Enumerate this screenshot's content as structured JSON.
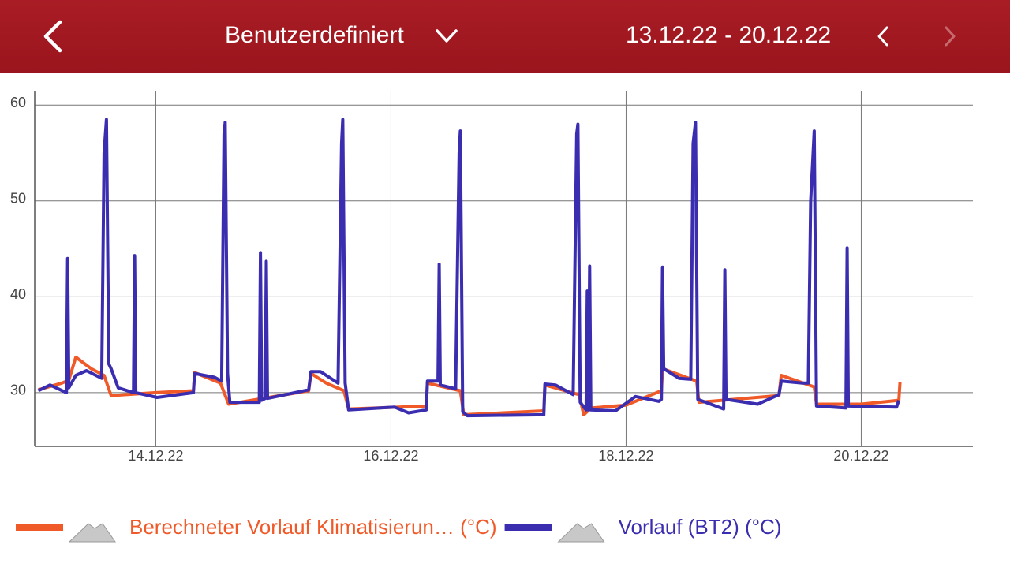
{
  "header": {
    "title": "Benutzerdefiniert",
    "date_range": "13.12.22 - 20.12.22"
  },
  "chart_data": {
    "type": "line",
    "xlim": [
      12.97,
      20.95
    ],
    "xticks": [
      {
        "value": 14,
        "label": "14.12.22"
      },
      {
        "value": 16,
        "label": "16.12.22"
      },
      {
        "value": 18,
        "label": "18.12.22"
      },
      {
        "value": 20,
        "label": "20.12.22"
      }
    ],
    "ylim": [
      24.4,
      61.5
    ],
    "yticks": [
      30,
      40,
      50,
      60
    ],
    "grid": true,
    "series": [
      {
        "name": "Berechneter Vorlauf Klimatisierun…  (°C)",
        "color": "#f05a28",
        "x": [
          13.0,
          13.2,
          13.26,
          13.32,
          13.45,
          13.56,
          13.62,
          14.0,
          14.32,
          14.33,
          14.55,
          14.62,
          15.3,
          15.32,
          15.45,
          15.6,
          15.64,
          16.3,
          16.31,
          16.59,
          16.62,
          17.3,
          17.31,
          17.6,
          17.64,
          17.7,
          18.0,
          18.3,
          18.31,
          18.6,
          18.62,
          19.3,
          19.32,
          19.6,
          19.62,
          20.0,
          20.32,
          20.33
        ],
        "values": [
          30.3,
          31,
          31.3,
          33.7,
          32.5,
          31.8,
          29.7,
          30.0,
          30.2,
          32.1,
          31,
          28.8,
          30.2,
          32,
          31,
          30.2,
          28.3,
          28.6,
          31,
          30.2,
          27.7,
          28.1,
          30.8,
          29.8,
          27.7,
          28.4,
          28.7,
          30.2,
          32.5,
          31.2,
          29,
          29.7,
          31.8,
          30.6,
          28.8,
          28.8,
          29.2,
          31.1
        ]
      },
      {
        "name": "Vorlauf (BT2) (°C)",
        "color": "#3a2db0",
        "x": [
          13.0,
          13.1,
          13.24,
          13.25,
          13.26,
          13.32,
          13.41,
          13.54,
          13.56,
          13.58,
          13.6,
          13.62,
          13.68,
          13.81,
          13.82,
          13.83,
          14.01,
          14.32,
          14.33,
          14.5,
          14.56,
          14.58,
          14.59,
          14.61,
          14.63,
          14.88,
          14.89,
          14.9,
          14.93,
          14.94,
          14.95,
          15.3,
          15.32,
          15.4,
          15.55,
          15.58,
          15.59,
          15.61,
          15.64,
          15.9,
          16.03,
          16.15,
          16.3,
          16.31,
          16.4,
          16.41,
          16.42,
          16.55,
          16.58,
          16.59,
          16.61,
          16.65,
          17.3,
          17.31,
          17.4,
          17.55,
          17.58,
          17.59,
          17.61,
          17.66,
          17.67,
          17.68,
          17.69,
          17.7,
          17.91,
          18.08,
          18.28,
          18.3,
          18.31,
          18.32,
          18.45,
          18.55,
          18.57,
          18.59,
          18.61,
          18.72,
          18.83,
          18.84,
          18.85,
          19.12,
          19.3,
          19.32,
          19.5,
          19.55,
          19.57,
          19.6,
          19.62,
          19.87,
          19.88,
          19.89,
          20.3,
          20.32
        ],
        "values": [
          30.2,
          30.8,
          30.0,
          44,
          30.5,
          31.8,
          32.3,
          31.5,
          55,
          58.5,
          33,
          32.5,
          30.5,
          30,
          44.3,
          30,
          29.5,
          30.0,
          32,
          31.6,
          31.2,
          57,
          58.2,
          32,
          29,
          29,
          44.6,
          29.2,
          29.4,
          43.7,
          29.4,
          30.3,
          32.2,
          32.2,
          31,
          56,
          58.5,
          31,
          28.2,
          28.4,
          28.5,
          27.9,
          28.2,
          31.2,
          31.2,
          43.4,
          30.8,
          30.4,
          55,
          57.3,
          28,
          27.6,
          27.7,
          30.9,
          30.8,
          29.8,
          57,
          58,
          29,
          28.2,
          40.6,
          28.2,
          43.2,
          28.2,
          28.1,
          29.6,
          29.1,
          29.3,
          43.1,
          32.5,
          31.5,
          31.4,
          56,
          58.2,
          29.3,
          28.8,
          28.3,
          42.8,
          29.3,
          28.8,
          29.8,
          31.2,
          31,
          31,
          50,
          57.3,
          28.6,
          28.4,
          45.1,
          28.6,
          28.5,
          29.2
        ]
      }
    ]
  }
}
